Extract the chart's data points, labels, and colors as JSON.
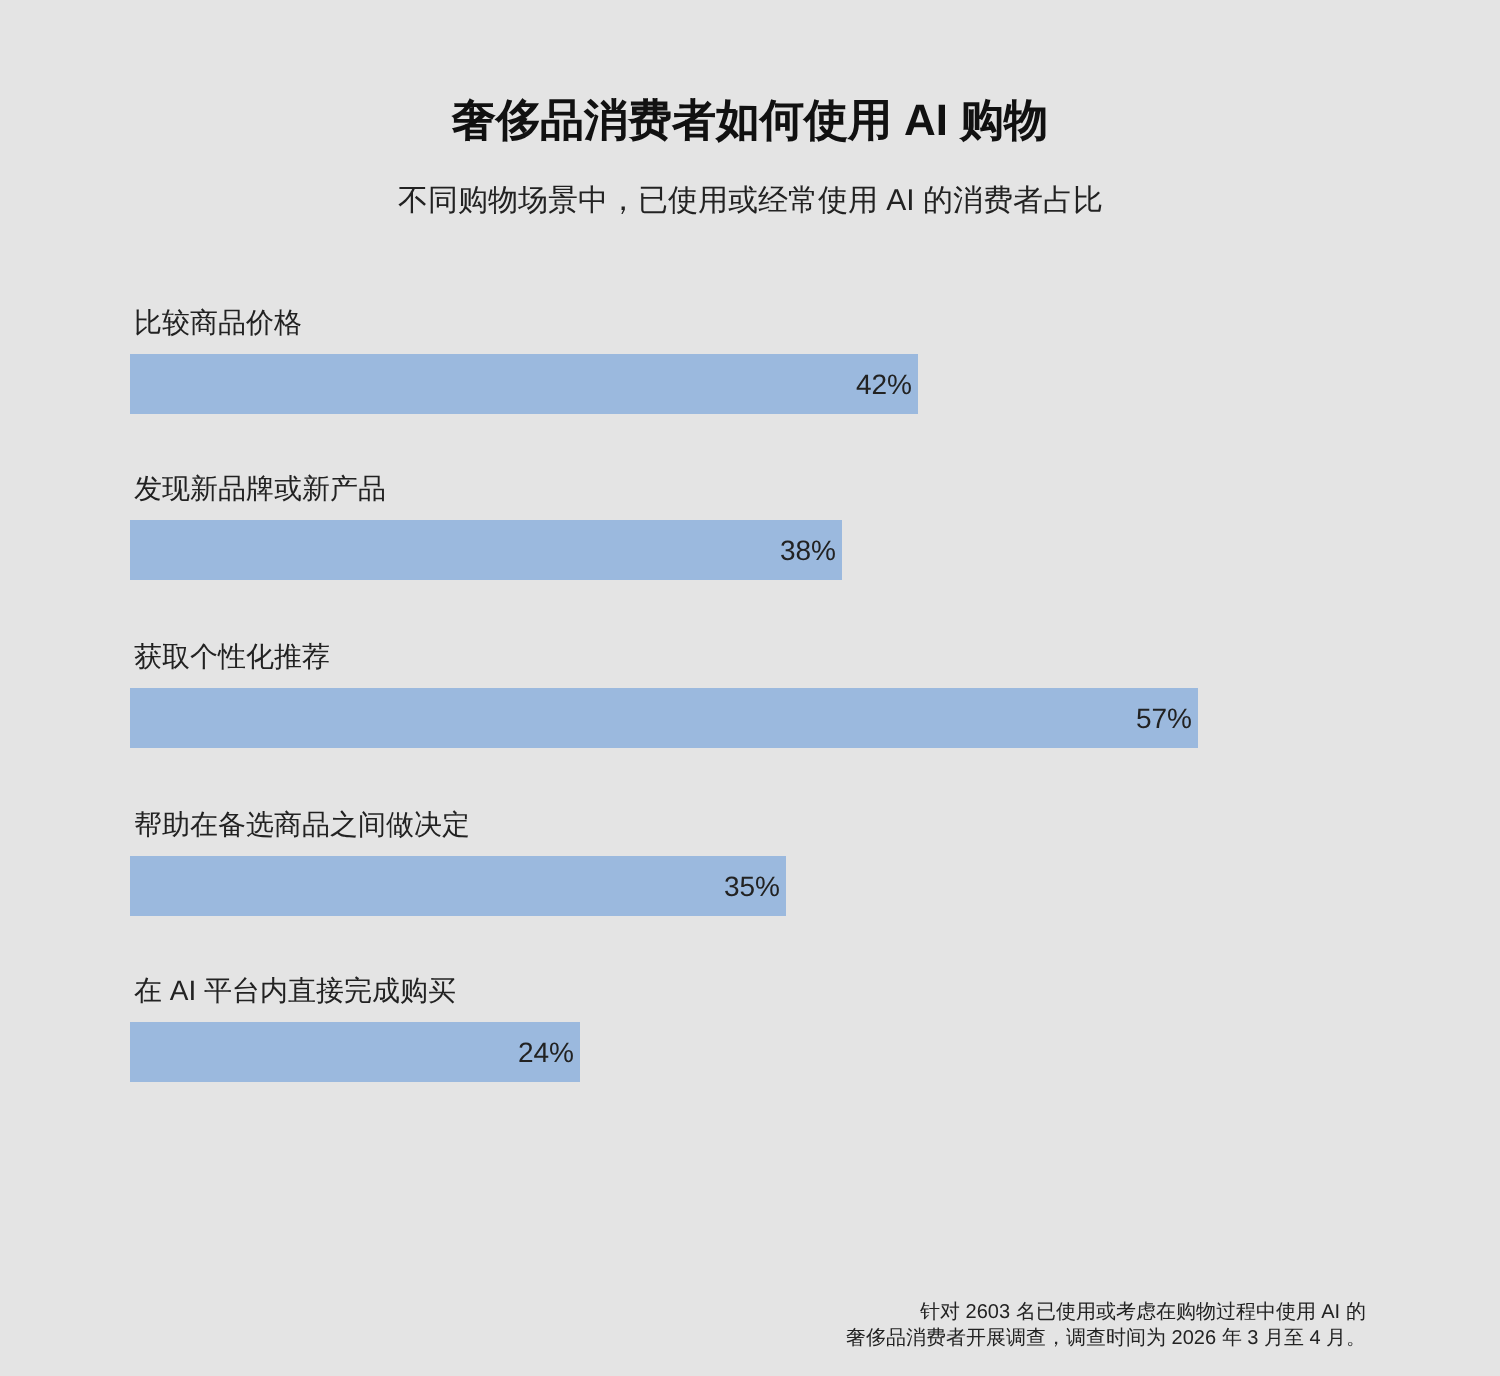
{
  "chart_data": {
    "type": "bar",
    "orientation": "horizontal",
    "title": "奢侈品消费者如何使用 AI 购物",
    "subtitle": "不同购物场景中，已使用或经常使用 AI 的消费者占比",
    "categories": [
      "比较商品价格",
      "发现新品牌或新产品",
      "获取个性化推荐",
      "帮助在备选商品之间做决定",
      "在 AI 平台内直接完成购买"
    ],
    "values": [
      42,
      38,
      57,
      35,
      24
    ],
    "value_labels": [
      "42%",
      "38%",
      "57%",
      "35%",
      "24%"
    ],
    "color": "#9bb9de",
    "annotations": [
      "针对 2603 名已使用或考虑在购物过程中使用 AI 的",
      "奢侈品消费者开展调查，调查时间为 2026 年 3 月至 4 月。"
    ],
    "grid": false,
    "legend": false
  }
}
